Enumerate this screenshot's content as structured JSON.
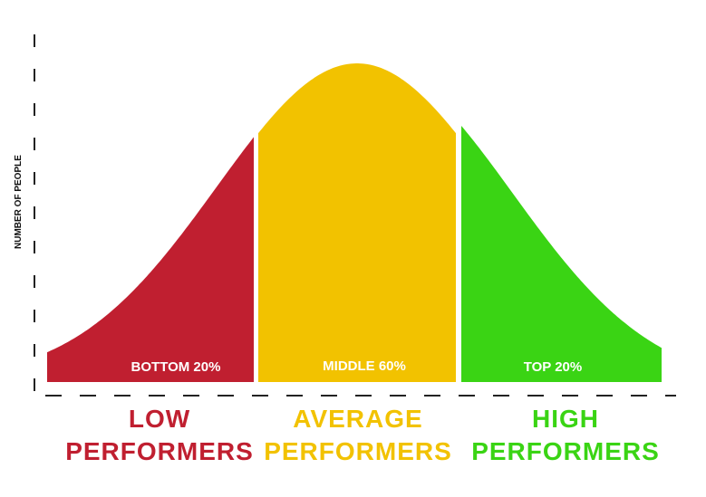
{
  "chart_data": {
    "type": "area",
    "ylabel": "NUMBER OF PEOPLE",
    "xlabel": "",
    "distribution": "normal",
    "segments": [
      {
        "label": "BOTTOM 20%",
        "percent": 20,
        "category_line1": "LOW",
        "category_line2": "PERFORMERS",
        "color": "#c01f30"
      },
      {
        "label": "MIDDLE 60%",
        "percent": 60,
        "category_line1": "AVERAGE",
        "category_line2": "PERFORMERS",
        "color": "#f2c200"
      },
      {
        "label": "TOP 20%",
        "percent": 20,
        "category_line1": "HIGH",
        "category_line2": "PERFORMERS",
        "color": "#3ad414"
      }
    ],
    "axis_style": "dashed",
    "axis_color": "#222222"
  }
}
